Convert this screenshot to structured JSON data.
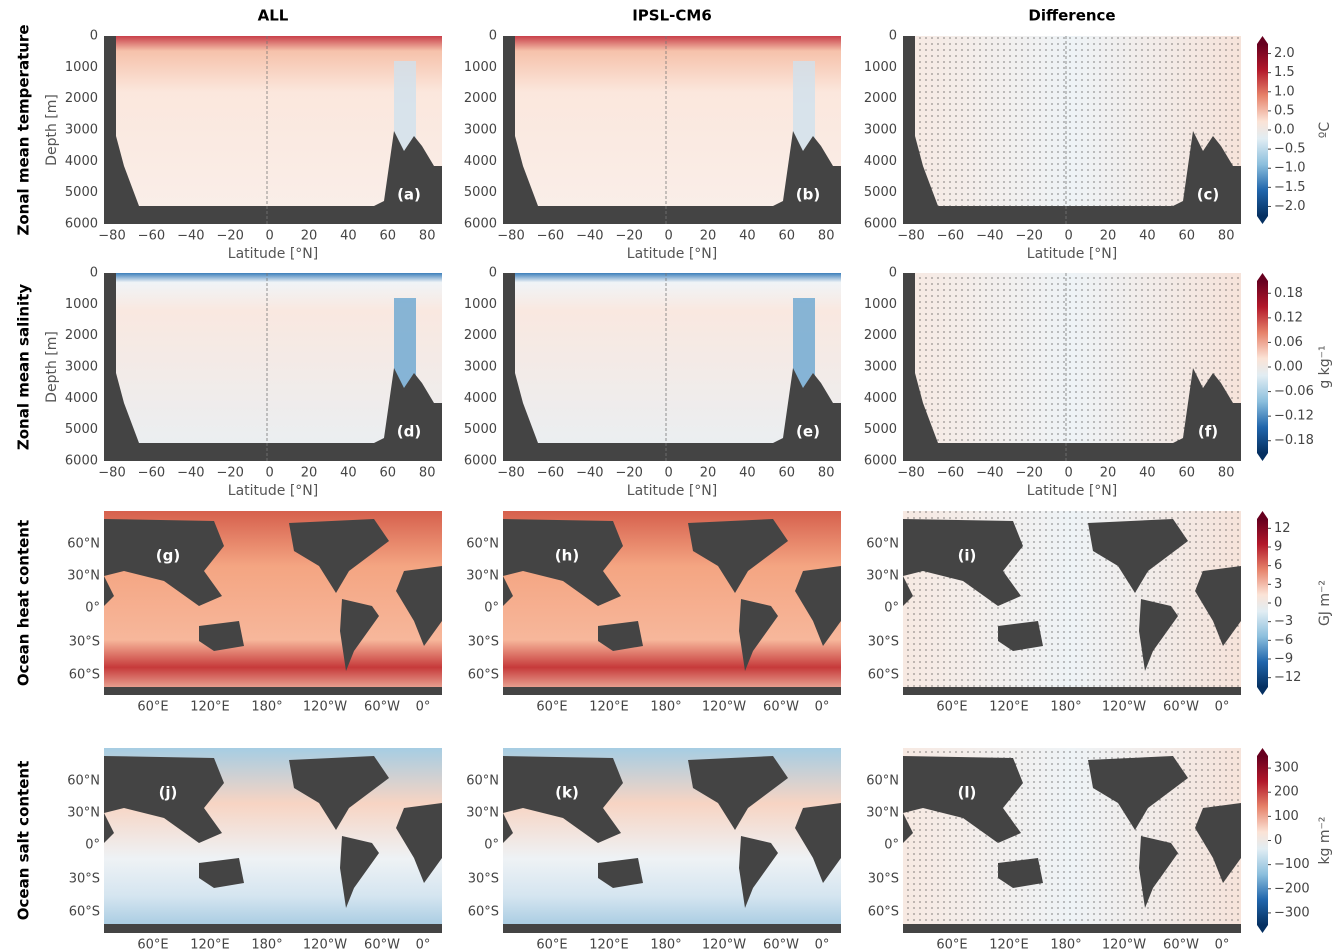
{
  "columns": [
    "ALL",
    "IPSL-CM6",
    "Difference"
  ],
  "rows": [
    {
      "title": "Zonal mean temperature",
      "kind": "section",
      "panels": [
        "(a)",
        "(b)",
        "(c)"
      ],
      "colorbar": {
        "ticks": [
          "2.0",
          "1.5",
          "1.0",
          "0.5",
          "0.0",
          "−0.5",
          "−1.0",
          "−1.5",
          "−2.0"
        ],
        "unit": "ºC"
      }
    },
    {
      "title": "Zonal mean salinity",
      "kind": "section",
      "panels": [
        "(d)",
        "(e)",
        "(f)"
      ],
      "colorbar": {
        "ticks": [
          "0.18",
          "0.12",
          "0.06",
          "0.00",
          "−0.06",
          "−0.12",
          "−0.18"
        ],
        "unit": "g kg⁻¹"
      }
    },
    {
      "title": "Ocean heat content",
      "kind": "map",
      "panels": [
        "(g)",
        "(h)",
        "(i)"
      ],
      "colorbar": {
        "ticks": [
          "12",
          "9",
          "6",
          "3",
          "0",
          "−3",
          "−6",
          "−9",
          "−12"
        ],
        "unit": "GJ m⁻²"
      }
    },
    {
      "title": "Ocean salt content",
      "kind": "map",
      "panels": [
        "(j)",
        "(k)",
        "(l)"
      ],
      "colorbar": {
        "ticks": [
          "300",
          "200",
          "100",
          "0",
          "−100",
          "−200",
          "−300"
        ],
        "unit": "kg m⁻²"
      }
    }
  ],
  "section_axes": {
    "ylabel": "Depth [m]",
    "xlabel": "Latitude [°N]",
    "yticks": [
      "0",
      "1000",
      "2000",
      "3000",
      "4000",
      "5000",
      "6000"
    ],
    "xticks": [
      "−80",
      "−60",
      "−40",
      "−20",
      "0",
      "20",
      "40",
      "60",
      "80"
    ]
  },
  "map_axes": {
    "xticks": [
      "60°E",
      "120°E",
      "180°",
      "120°W",
      "60°W",
      "0°"
    ],
    "yticks": [
      "60°N",
      "30°N",
      "0°",
      "30°S",
      "60°S"
    ]
  }
}
